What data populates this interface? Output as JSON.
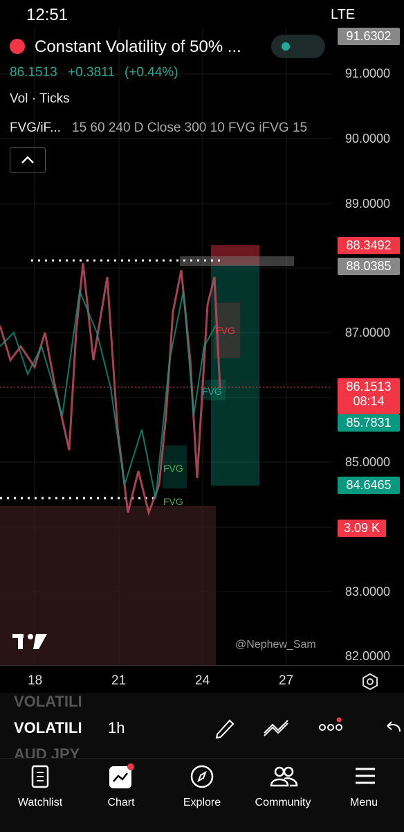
{
  "status_bar": {
    "time": "12:51",
    "network": "LTE"
  },
  "header": {
    "title": "Constant Volatility of 50% ...",
    "price": "86.1513",
    "change": "+0.3811",
    "change_pct": "(+0.44%)",
    "volume_study": "Vol · Ticks",
    "indicator_name": "FVG/iF...",
    "indicator_params": "15 60 240 D Close 300 10 FVG iFVG 15"
  },
  "price_axis": {
    "top": "91.6302",
    "labels": [
      "91.0000",
      "90.0000",
      "89.0000",
      "87.0000",
      "85.0000",
      "83.0000",
      "82.0000"
    ],
    "tags": {
      "target": "88.3492",
      "entry": "88.0385",
      "last": "86.1513",
      "countdown": "08:14",
      "level": "85.7831",
      "stop": "84.6465",
      "volume": "3.09 K"
    }
  },
  "chart_labels": {
    "fvg": [
      "FVG",
      "FVG",
      "FVG",
      "FVG"
    ],
    "watermark": "@Nephew_Sam"
  },
  "time_axis": [
    "18",
    "21",
    "24",
    "27"
  ],
  "toolbar": {
    "symbol_above": "VOLATILI",
    "symbol": "VOLATILI",
    "interval": "1h",
    "symbol_below": "AUD JPY"
  },
  "nav": [
    "Watchlist",
    "Chart",
    "Explore",
    "Community",
    "Menu"
  ]
}
